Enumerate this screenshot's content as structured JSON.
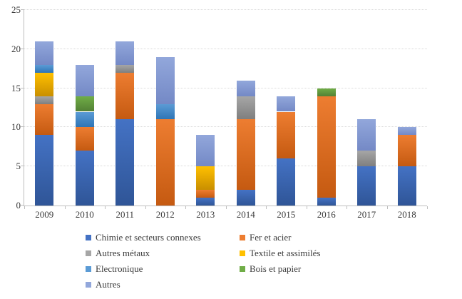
{
  "chart_data": {
    "type": "bar",
    "stacked": true,
    "title": "",
    "xlabel": "",
    "ylabel": "",
    "categories": [
      "2009",
      "2010",
      "2011",
      "2012",
      "2013",
      "2014",
      "2015",
      "2016",
      "2017",
      "2018"
    ],
    "series": [
      {
        "name": "Chimie et secteurs connexes",
        "color": "#4472C4",
        "color_dark": "#2F5597",
        "values": [
          9,
          7,
          11,
          0,
          1,
          2,
          6,
          1,
          5,
          5
        ]
      },
      {
        "name": "Fer et acier",
        "color": "#ED7D31",
        "color_dark": "#C55A11",
        "values": [
          4,
          3,
          6,
          11,
          1,
          9,
          6,
          13,
          0,
          4
        ]
      },
      {
        "name": "Autres métaux",
        "color": "#A6A6A6",
        "color_dark": "#7F7F7F",
        "values": [
          1,
          0,
          1,
          0,
          0,
          3,
          0,
          0,
          2,
          0
        ]
      },
      {
        "name": "Textile et assimilés",
        "color": "#FFC000",
        "color_dark": "#C98F00",
        "values": [
          3,
          0,
          0,
          0,
          3,
          0,
          0,
          0,
          0,
          0
        ]
      },
      {
        "name": "Electronique",
        "color": "#5B9BD5",
        "color_dark": "#2E75B6",
        "values": [
          1,
          2,
          0,
          2,
          0,
          0,
          0,
          0,
          0,
          0
        ]
      },
      {
        "name": "Bois et papier",
        "color": "#70AD47",
        "color_dark": "#538135",
        "values": [
          0,
          2,
          0,
          0,
          0,
          0,
          0,
          1,
          0,
          0
        ]
      },
      {
        "name": "Autres",
        "color": "#92A7DB",
        "color_dark": "#7489C6",
        "values": [
          3,
          4,
          3,
          6,
          4,
          2,
          2,
          0,
          4,
          1
        ]
      }
    ],
    "totals": [
      21,
      18,
      21,
      19,
      9,
      16,
      14,
      15,
      11,
      10
    ],
    "y_ticks": [
      0,
      5,
      10,
      15,
      20,
      25
    ],
    "ylim": [
      0,
      25
    ],
    "grid": "horizontal-dotted",
    "legend_position": "bottom-two-columns",
    "axis_color": "#bfbfbf",
    "gridline_color": "#d9d9d9",
    "text_color": "#3b3b3b"
  }
}
